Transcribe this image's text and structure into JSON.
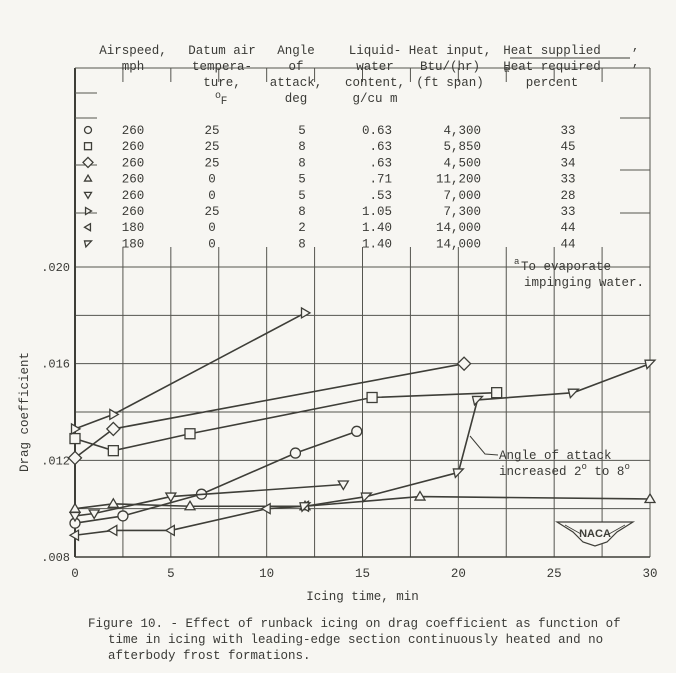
{
  "table": {
    "headers": [
      {
        "lines": [
          "Airspeed,",
          "mph"
        ]
      },
      {
        "lines": [
          "Datum air",
          "tempera-",
          "ture,",
          "°F"
        ]
      },
      {
        "lines": [
          "Angle",
          "of",
          "attack,",
          "deg"
        ]
      },
      {
        "lines": [
          "Liquid-",
          "water",
          "content,",
          "g/cu m"
        ]
      },
      {
        "lines": [
          "Heat input,",
          "Btu/(hr)",
          "(ft span)"
        ]
      },
      {
        "lines": [
          "Heat supplied",
          "Heat required",
          "percent"
        ],
        "superscript": "a"
      }
    ],
    "rows": [
      {
        "symbol": "circle",
        "airspeed": "260",
        "temp": "25",
        "angle": "5",
        "lwc": "0.63",
        "heat": "4,300",
        "percent": "33"
      },
      {
        "symbol": "square",
        "airspeed": "260",
        "temp": "25",
        "angle": "8",
        "lwc": ".63",
        "heat": "5,850",
        "percent": "45"
      },
      {
        "symbol": "diamond",
        "airspeed": "260",
        "temp": "25",
        "angle": "8",
        "lwc": ".63",
        "heat": "4,500",
        "percent": "34"
      },
      {
        "symbol": "triangle-up",
        "airspeed": "260",
        "temp": "0",
        "angle": "5",
        "lwc": ".71",
        "heat": "11,200",
        "percent": "33"
      },
      {
        "symbol": "triangle-down",
        "airspeed": "260",
        "temp": "0",
        "angle": "5",
        "lwc": ".53",
        "heat": "7,000",
        "percent": "28"
      },
      {
        "symbol": "triangle-right",
        "airspeed": "260",
        "temp": "25",
        "angle": "8",
        "lwc": "1.05",
        "heat": "7,300",
        "percent": "33"
      },
      {
        "symbol": "triangle-left",
        "airspeed": "180",
        "temp": "0",
        "angle": "2",
        "lwc": "1.40",
        "heat": "14,000",
        "percent": "44"
      },
      {
        "symbol": "flag-triangle",
        "airspeed": "180",
        "temp": "0",
        "angle": "8",
        "lwc": "1.40",
        "heat": "14,000",
        "percent": "44"
      }
    ],
    "footnote": {
      "mark": "a",
      "line1": "To evaporate",
      "line2": "impinging water."
    }
  },
  "annotation": {
    "line1": "Angle of attack",
    "line2": "increased 2",
    "deg1": "o",
    "mid": " to 8",
    "deg2": "o"
  },
  "logo": "NACA",
  "caption": {
    "line1": "Figure 10. - Effect of runback icing on drag coefficient as function of",
    "line2": "time in icing with leading-edge section continuously heated and no",
    "line3": "afterbody frost formations."
  },
  "chart_data": {
    "type": "line",
    "title": "Figure 10. - Effect of runback icing on drag coefficient as function of time in icing with leading-edge section continuously heated and no afterbody frost formations.",
    "xlabel": "Icing time, min",
    "ylabel": "Drag coefficient",
    "xlim": [
      0,
      30
    ],
    "ylim": [
      0.008,
      0.02
    ],
    "xticks": [
      0,
      5,
      10,
      15,
      20,
      25,
      30
    ],
    "yticks": [
      ".008",
      ".012",
      ".016",
      ".020"
    ],
    "grid": true,
    "series": [
      {
        "name": "260 mph, 25 F, 5 deg, 0.63 g/cu m, 4,300 Btu, 33%",
        "marker": "circle",
        "x": [
          0,
          2.5,
          6.6,
          11.5,
          14.7
        ],
        "y": [
          0.0094,
          0.0097,
          0.0106,
          0.0123,
          0.0132
        ]
      },
      {
        "name": "260 mph, 25 F, 8 deg, .63 g/cu m, 5,850 Btu, 45%",
        "marker": "square",
        "x": [
          0,
          2,
          6,
          15.5,
          22
        ],
        "y": [
          0.0129,
          0.0124,
          0.0131,
          0.0146,
          0.0148
        ]
      },
      {
        "name": "260 mph, 25 F, 8 deg, .63 g/cu m, 4,500 Btu, 34%",
        "marker": "diamond",
        "x": [
          0,
          2,
          20.3
        ],
        "y": [
          0.0121,
          0.0133,
          0.016
        ]
      },
      {
        "name": "260 mph, 0 F, 5 deg, .71 g/cu m, 11,200 Btu, 33%",
        "marker": "triangle-up",
        "x": [
          0,
          2,
          6,
          12,
          18,
          30
        ],
        "y": [
          0.01,
          0.0102,
          0.0101,
          0.0101,
          0.0105,
          0.0104
        ]
      },
      {
        "name": "260 mph, 0 F, 5 deg, .53 g/cu m, 7,000 Btu, 28%",
        "marker": "triangle-down",
        "x": [
          0,
          1,
          5,
          14
        ],
        "y": [
          0.0097,
          0.0098,
          0.0105,
          0.011
        ]
      },
      {
        "name": "260 mph, 25 F, 8 deg, 1.05 g/cu m, 7,300 Btu, 33%",
        "marker": "triangle-right",
        "x": [
          0,
          2,
          12
        ],
        "y": [
          0.0133,
          0.0139,
          0.0181
        ]
      },
      {
        "name": "180 mph, 0 F, 2 deg, 1.40 g/cu m, 14,000 Btu, 44%",
        "marker": "triangle-left",
        "x": [
          0,
          2,
          5,
          10,
          12
        ],
        "y": [
          0.0089,
          0.0091,
          0.0091,
          0.01,
          0.0101
        ]
      },
      {
        "name": "180 mph, 0 F, 8 deg, 1.40 g/cu m, 14,000 Btu, 44%",
        "marker": "flag-triangle",
        "x": [
          12,
          15.2,
          20,
          21,
          26,
          30
        ],
        "y": [
          0.0101,
          0.0105,
          0.0115,
          0.0145,
          0.0148,
          0.016
        ]
      }
    ],
    "annotations": [
      "Angle of attack increased 2° to 8°",
      "aTo evaporate impinging water.",
      "NACA"
    ]
  }
}
